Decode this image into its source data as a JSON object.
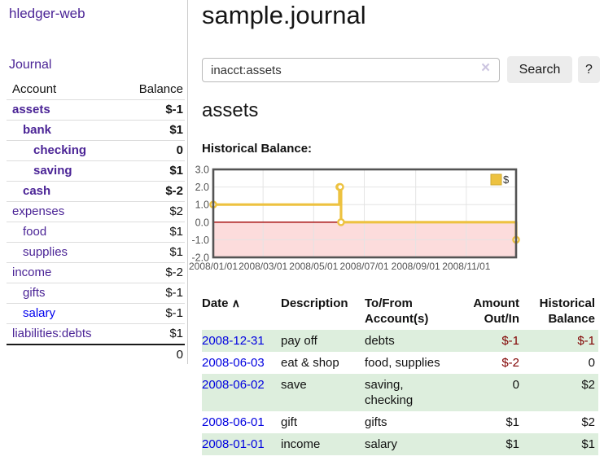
{
  "app": {
    "brand": "hledger-web",
    "nav": {
      "journal": "Journal"
    }
  },
  "colors": {
    "link_purple": "#4b2496",
    "link_blue": "#0000ee",
    "negative_strong": "#800000",
    "negative_muted": "#b86f6f",
    "row_stripe_green": "#ddeedd",
    "button_bg": "#ececec",
    "series_gold": "#edc240"
  },
  "sidebar": {
    "header": {
      "account": "Account",
      "balance": "Balance"
    },
    "accounts": [
      {
        "name": "assets",
        "balance": "$-1"
      },
      {
        "name": "bank",
        "balance": "$1"
      },
      {
        "name": "checking",
        "balance": "0"
      },
      {
        "name": "saving",
        "balance": "$1"
      },
      {
        "name": "cash",
        "balance": "$-2"
      },
      {
        "name": "expenses",
        "balance": "$2"
      },
      {
        "name": "food",
        "balance": "$1"
      },
      {
        "name": "supplies",
        "balance": "$1"
      },
      {
        "name": "income",
        "balance": "$-2"
      },
      {
        "name": "gifts",
        "balance": "$-1"
      },
      {
        "name": "salary",
        "balance": "$-1"
      },
      {
        "name": "liabilities:debts",
        "balance": "$1"
      }
    ],
    "total": "0"
  },
  "main": {
    "title": "sample.journal",
    "search": {
      "value": "inacct:assets",
      "clear_label": "×",
      "search_button": "Search",
      "help_button": "?"
    },
    "account_heading": "assets",
    "chart_heading": "Historical Balance:"
  },
  "chart_data": {
    "type": "line",
    "title": "Historical Balance:",
    "step": true,
    "legend_position": "top-right",
    "grid": true,
    "ylim": [
      -2,
      3
    ],
    "y_ticks": [
      3.0,
      2.0,
      1.0,
      0.0,
      -1.0,
      -2.0
    ],
    "y_tick_labels": [
      "3.0",
      "2.0",
      "1.0",
      "0.0",
      "-1.0",
      "-2.0"
    ],
    "x_range_days": 365,
    "x_ticks": [
      {
        "label": "2008/01/01",
        "day": 0
      },
      {
        "label": "2008/03/01",
        "day": 60
      },
      {
        "label": "2008/05/01",
        "day": 121
      },
      {
        "label": "2008/07/01",
        "day": 182
      },
      {
        "label": "2008/09/01",
        "day": 244
      },
      {
        "label": "2008/11/01",
        "day": 305
      }
    ],
    "series": [
      {
        "name": "$",
        "color": "#edc240",
        "points": [
          {
            "date": "2008-01-01",
            "day": 0,
            "value": 1
          },
          {
            "date": "2008-06-01",
            "day": 152,
            "value": 2
          },
          {
            "date": "2008-06-02",
            "day": 153,
            "value": 2
          },
          {
            "date": "2008-06-03",
            "day": 154,
            "value": 0
          },
          {
            "date": "2008-12-31",
            "day": 365,
            "value": -1
          }
        ]
      }
    ],
    "negative_region_color": "#fcdcdc",
    "zero_line_color": "#a00000",
    "border_color": "#545454",
    "grid_color": "#e4e4e4",
    "tick_label_color": "#545454"
  },
  "register": {
    "headers": {
      "date": "Date",
      "sort_icon": "∧",
      "description": "Description",
      "account_l1": "To/From",
      "account_l2": "Account(s)",
      "amount_l1": "Amount",
      "amount_l2": "Out/In",
      "balance_l1": "Historical",
      "balance_l2": "Balance"
    },
    "rows": [
      {
        "date": "2008-12-31",
        "description": "pay off",
        "accounts": "debts",
        "amount": "$-1",
        "balance": "$-1"
      },
      {
        "date": "2008-06-03",
        "description": "eat & shop",
        "accounts": "food, supplies",
        "amount": "$-2",
        "balance": "0"
      },
      {
        "date": "2008-06-02",
        "description": "save",
        "accounts": "saving, checking",
        "amount": "0",
        "balance": "$2"
      },
      {
        "date": "2008-06-01",
        "description": "gift",
        "accounts": "gifts",
        "amount": "$1",
        "balance": "$2"
      },
      {
        "date": "2008-01-01",
        "description": "income",
        "accounts": "salary",
        "amount": "$1",
        "balance": "$1"
      }
    ]
  }
}
